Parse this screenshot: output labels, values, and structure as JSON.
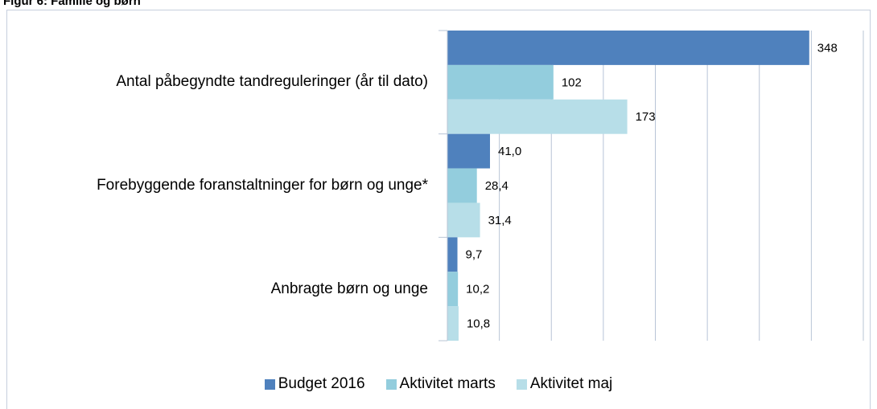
{
  "chart_data": {
    "type": "hbar",
    "title": "Figur 6: Familie og børn",
    "categories": [
      "Antal påbegyndte tandreguleringer (år til dato)",
      "Forebyggende foranstaltninger  for børn og unge*",
      "Anbragte børn og unge"
    ],
    "series": [
      {
        "name": "Budget 2016",
        "color": "#4f81bd",
        "values": [
          348,
          41.0,
          9.7
        ],
        "value_labels": [
          "348",
          "41,0",
          "9,7"
        ]
      },
      {
        "name": "Aktivitet marts",
        "color": "#93cddd",
        "values": [
          102,
          28.4,
          10.2
        ],
        "value_labels": [
          "102",
          "28,4",
          "10,2"
        ]
      },
      {
        "name": "Aktivitet maj",
        "color": "#b7dee8",
        "values": [
          173,
          31.4,
          10.8
        ],
        "value_labels": [
          "173",
          "31,4",
          "10,8"
        ]
      }
    ],
    "xlim": [
      0,
      400
    ],
    "xticks": [
      0,
      50,
      100,
      150,
      200,
      250,
      300,
      350,
      400
    ],
    "grid": true
  }
}
